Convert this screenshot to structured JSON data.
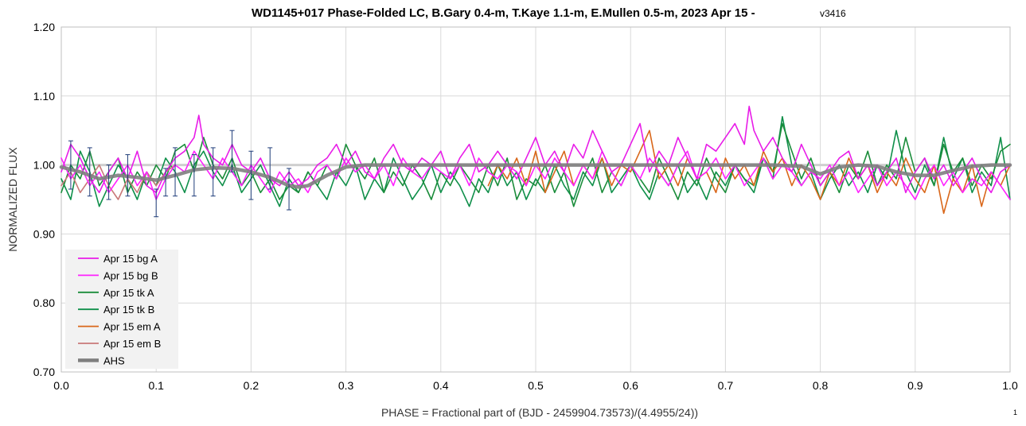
{
  "chart_data": {
    "type": "line",
    "title": "WD1145+017 Phase-Folded LC, B.Gary 0.4-m, T.Kaye 1.1-m, E.Mullen 0.5-m, 2023 Apr 15 - ",
    "title_version": "v3416",
    "xlabel": "PHASE = Fractional part of (BJD - 2459904.73573)/(4.4955/24))",
    "ylabel": "NORMALIZED FLUX",
    "xlim": [
      0.0,
      1.0
    ],
    "ylim": [
      0.7,
      1.2
    ],
    "x_ticks": [
      "0.0",
      "0.1",
      "0.2",
      "0.3",
      "0.4",
      "0.5",
      "0.6",
      "0.7",
      "0.8",
      "0.9",
      "1.0"
    ],
    "y_ticks": [
      "0.70",
      "0.80",
      "0.90",
      "1.00",
      "1.10",
      "1.20"
    ],
    "grid": true,
    "legend_position": "bottom-left",
    "footnote": "1",
    "series": [
      {
        "name": "Apr 15 bg A",
        "color": "#e81ce8",
        "x": [
          0.0,
          0.01,
          0.02,
          0.03,
          0.04,
          0.05,
          0.06,
          0.07,
          0.08,
          0.09,
          0.1,
          0.11,
          0.12,
          0.13,
          0.14,
          0.145,
          0.15,
          0.16,
          0.17,
          0.18,
          0.19,
          0.2,
          0.21,
          0.22,
          0.23,
          0.24,
          0.25,
          0.26,
          0.27,
          0.28,
          0.29,
          0.3,
          0.31,
          0.32,
          0.33,
          0.34,
          0.35,
          0.36,
          0.37,
          0.38,
          0.39,
          0.4,
          0.41,
          0.42,
          0.43,
          0.44,
          0.45,
          0.46,
          0.47,
          0.48,
          0.49,
          0.5,
          0.51,
          0.52,
          0.53,
          0.54,
          0.55,
          0.56,
          0.57,
          0.58,
          0.59,
          0.6,
          0.61,
          0.62,
          0.63,
          0.64,
          0.65,
          0.66,
          0.67,
          0.68,
          0.69,
          0.7,
          0.71,
          0.72,
          0.725,
          0.73,
          0.74,
          0.75,
          0.76,
          0.77,
          0.78,
          0.79,
          0.8,
          0.81,
          0.82,
          0.83,
          0.84,
          0.85,
          0.86,
          0.87,
          0.88,
          0.89,
          0.9,
          0.91,
          0.92,
          0.93,
          0.94,
          0.95,
          0.96,
          0.97,
          0.98,
          0.99,
          1.0
        ],
        "values": [
          0.99,
          1.03,
          1.01,
          0.98,
          0.96,
          0.99,
          1.01,
          0.98,
          1.02,
          0.97,
          0.96,
          0.99,
          1.01,
          1.02,
          1.04,
          1.072,
          1.03,
          1.01,
          1.0,
          1.03,
          1.0,
          0.99,
          1.01,
          0.98,
          0.97,
          0.99,
          0.97,
          0.98,
          1.0,
          1.01,
          1.03,
          1.0,
          1.02,
          0.99,
          0.98,
          1.01,
          1.03,
          1.0,
          0.99,
          1.01,
          1.0,
          1.02,
          0.98,
          1.01,
          1.03,
          0.99,
          1.0,
          1.02,
          1.0,
          0.98,
          1.01,
          1.04,
          1.0,
          1.02,
          0.99,
          1.03,
          1.01,
          1.05,
          1.02,
          0.99,
          1.0,
          1.03,
          1.06,
          0.99,
          1.02,
          1.0,
          1.04,
          1.01,
          0.98,
          1.03,
          1.02,
          1.04,
          1.06,
          1.03,
          1.085,
          1.05,
          1.02,
          1.04,
          1.01,
          0.99,
          1.03,
          1.0,
          0.97,
          0.99,
          1.01,
          1.02,
          0.98,
          1.0,
          0.97,
          0.99,
          1.01,
          0.96,
          0.99,
          1.01,
          0.98,
          1.0,
          0.97,
          0.99,
          1.01,
          0.98,
          0.96,
          0.99,
          1.0
        ]
      },
      {
        "name": "Apr 15 bg B",
        "color": "#ff22ff",
        "x": [
          0.0,
          0.01,
          0.02,
          0.03,
          0.04,
          0.05,
          0.06,
          0.07,
          0.08,
          0.09,
          0.1,
          0.11,
          0.12,
          0.13,
          0.14,
          0.15,
          0.16,
          0.17,
          0.18,
          0.19,
          0.2,
          0.21,
          0.22,
          0.23,
          0.24,
          0.25,
          0.26,
          0.27,
          0.28,
          0.29,
          0.3,
          0.31,
          0.32,
          0.33,
          0.34,
          0.35,
          0.36,
          0.37,
          0.38,
          0.39,
          0.4,
          0.41,
          0.42,
          0.43,
          0.44,
          0.45,
          0.46,
          0.47,
          0.48,
          0.49,
          0.5,
          0.51,
          0.52,
          0.53,
          0.54,
          0.55,
          0.56,
          0.57,
          0.58,
          0.59,
          0.6,
          0.61,
          0.62,
          0.63,
          0.64,
          0.65,
          0.66,
          0.67,
          0.68,
          0.69,
          0.7,
          0.71,
          0.72,
          0.73,
          0.74,
          0.75,
          0.76,
          0.77,
          0.78,
          0.79,
          0.8,
          0.81,
          0.82,
          0.83,
          0.84,
          0.85,
          0.86,
          0.87,
          0.88,
          0.89,
          0.9,
          0.91,
          0.92,
          0.93,
          0.94,
          0.95,
          0.96,
          0.97,
          0.98,
          0.99,
          1.0
        ],
        "values": [
          1.01,
          0.98,
          1.0,
          0.97,
          0.99,
          0.96,
          0.98,
          1.0,
          0.97,
          0.99,
          0.95,
          0.98,
          1.0,
          0.99,
          1.02,
          1.0,
          0.98,
          1.01,
          0.99,
          0.97,
          1.0,
          0.98,
          0.96,
          0.99,
          0.97,
          0.98,
          0.96,
          0.99,
          1.0,
          0.98,
          1.01,
          0.99,
          1.0,
          0.98,
          1.0,
          0.97,
          1.01,
          0.99,
          0.98,
          1.0,
          0.99,
          0.98,
          1.0,
          0.97,
          1.01,
          0.99,
          0.98,
          1.0,
          0.99,
          0.97,
          1.0,
          0.98,
          1.01,
          0.99,
          0.97,
          1.0,
          0.98,
          1.02,
          0.99,
          0.97,
          1.0,
          0.98,
          1.01,
          0.99,
          0.97,
          1.0,
          1.02,
          0.98,
          0.99,
          1.01,
          0.98,
          1.0,
          0.97,
          0.99,
          1.01,
          0.98,
          1.0,
          0.99,
          0.97,
          0.99,
          0.98,
          1.0,
          0.97,
          0.99,
          0.96,
          0.98,
          1.0,
          0.97,
          0.99,
          0.97,
          0.95,
          0.98,
          1.0,
          0.97,
          0.99,
          0.96,
          0.98,
          0.97,
          0.99,
          0.97,
          0.95
        ]
      },
      {
        "name": "Apr 15 tk A",
        "color": "#1a8c3a",
        "x": [
          0.0,
          0.01,
          0.02,
          0.03,
          0.04,
          0.05,
          0.06,
          0.07,
          0.08,
          0.09,
          0.1,
          0.11,
          0.12,
          0.13,
          0.14,
          0.15,
          0.16,
          0.17,
          0.18,
          0.19,
          0.2,
          0.21,
          0.22,
          0.23,
          0.24,
          0.25,
          0.26,
          0.27,
          0.28,
          0.29,
          0.3,
          0.31,
          0.32,
          0.33,
          0.34,
          0.35,
          0.36,
          0.37,
          0.38,
          0.39,
          0.4,
          0.41,
          0.42,
          0.43,
          0.44,
          0.45,
          0.46,
          0.47,
          0.48,
          0.49,
          0.5,
          0.51,
          0.52,
          0.53,
          0.54,
          0.55,
          0.56,
          0.57,
          0.58,
          0.59,
          0.6,
          0.61,
          0.62,
          0.63,
          0.64,
          0.65,
          0.66,
          0.67,
          0.68,
          0.69,
          0.7,
          0.71,
          0.72,
          0.73,
          0.74,
          0.75,
          0.76,
          0.77,
          0.78,
          0.79,
          0.8,
          0.81,
          0.82,
          0.83,
          0.84,
          0.85,
          0.86,
          0.87,
          0.88,
          0.89,
          0.9,
          0.91,
          0.92,
          0.93,
          0.94,
          0.95,
          0.96,
          0.97,
          0.98,
          0.99,
          1.0
        ],
        "values": [
          0.96,
          1.0,
          0.98,
          1.02,
          0.97,
          0.99,
          1.01,
          0.96,
          0.99,
          0.97,
          1.0,
          0.98,
          1.02,
          1.03,
          0.99,
          1.04,
          1.0,
          0.98,
          1.01,
          0.97,
          0.99,
          0.96,
          0.98,
          0.95,
          0.97,
          0.96,
          0.99,
          0.97,
          1.0,
          0.98,
          1.03,
          1.0,
          0.98,
          1.01,
          0.96,
          0.99,
          0.97,
          1.0,
          0.98,
          0.95,
          0.99,
          0.97,
          1.0,
          0.98,
          0.96,
          1.0,
          0.97,
          1.01,
          0.95,
          0.98,
          0.97,
          1.0,
          0.96,
          0.99,
          0.94,
          0.98,
          1.01,
          0.96,
          0.99,
          0.97,
          1.0,
          0.98,
          0.96,
          1.01,
          0.98,
          0.95,
          0.99,
          0.97,
          1.01,
          0.98,
          0.96,
          1.0,
          0.98,
          0.97,
          1.01,
          0.99,
          1.06,
          1.02,
          0.98,
          1.01,
          0.97,
          0.99,
          0.96,
          1.0,
          0.98,
          1.02,
          0.97,
          1.0,
          0.98,
          1.04,
          0.99,
          1.01,
          0.97,
          1.03,
          0.99,
          1.01,
          0.97,
          1.0,
          0.98,
          1.02,
          1.03
        ]
      },
      {
        "name": "Apr 15 tk B",
        "color": "#0f8f4a",
        "x": [
          0.0,
          0.01,
          0.02,
          0.03,
          0.04,
          0.05,
          0.06,
          0.07,
          0.08,
          0.09,
          0.1,
          0.11,
          0.12,
          0.13,
          0.14,
          0.15,
          0.16,
          0.17,
          0.18,
          0.19,
          0.2,
          0.21,
          0.22,
          0.23,
          0.24,
          0.25,
          0.26,
          0.27,
          0.28,
          0.29,
          0.3,
          0.31,
          0.32,
          0.33,
          0.34,
          0.35,
          0.36,
          0.37,
          0.38,
          0.39,
          0.4,
          0.41,
          0.42,
          0.43,
          0.44,
          0.45,
          0.46,
          0.47,
          0.48,
          0.49,
          0.5,
          0.51,
          0.52,
          0.53,
          0.54,
          0.55,
          0.56,
          0.57,
          0.58,
          0.59,
          0.6,
          0.61,
          0.62,
          0.63,
          0.64,
          0.65,
          0.66,
          0.67,
          0.68,
          0.69,
          0.7,
          0.71,
          0.72,
          0.73,
          0.74,
          0.75,
          0.76,
          0.77,
          0.78,
          0.79,
          0.8,
          0.81,
          0.82,
          0.83,
          0.84,
          0.85,
          0.86,
          0.87,
          0.88,
          0.89,
          0.9,
          0.91,
          0.92,
          0.93,
          0.94,
          0.95,
          0.96,
          0.97,
          0.98,
          0.99,
          1.0
        ],
        "values": [
          0.98,
          0.95,
          1.02,
          0.99,
          0.94,
          0.97,
          1.0,
          0.98,
          0.95,
          0.99,
          0.97,
          1.01,
          0.99,
          0.96,
          1.0,
          1.02,
          0.99,
          0.97,
          1.0,
          0.96,
          0.98,
          1.0,
          0.97,
          0.94,
          0.98,
          0.96,
          0.99,
          0.97,
          0.95,
          0.99,
          0.97,
          1.0,
          0.95,
          0.98,
          0.96,
          1.01,
          0.98,
          0.95,
          0.97,
          1.0,
          0.96,
          0.99,
          0.97,
          0.94,
          0.98,
          0.96,
          1.0,
          0.97,
          0.99,
          0.95,
          0.98,
          0.96,
          1.0,
          0.97,
          0.95,
          0.99,
          0.97,
          1.01,
          0.96,
          0.98,
          1.0,
          0.97,
          0.95,
          0.99,
          0.97,
          1.0,
          0.96,
          0.98,
          0.95,
          0.99,
          0.97,
          1.0,
          0.98,
          0.96,
          1.01,
          0.98,
          1.07,
          1.0,
          0.97,
          0.99,
          0.95,
          0.98,
          1.0,
          0.97,
          0.99,
          0.96,
          1.0,
          0.98,
          1.05,
          0.99,
          0.96,
          1.0,
          0.97,
          1.04,
          0.98,
          1.01,
          0.96,
          0.99,
          0.97,
          1.04,
          0.95
        ]
      },
      {
        "name": "Apr 15 em A",
        "color": "#d9671a",
        "x": [
          0.45,
          0.46,
          0.47,
          0.48,
          0.49,
          0.5,
          0.51,
          0.52,
          0.53,
          0.54,
          0.55,
          0.56,
          0.57,
          0.58,
          0.59,
          0.6,
          0.61,
          0.62,
          0.63,
          0.64,
          0.65,
          0.66,
          0.67,
          0.68,
          0.69,
          0.7,
          0.71,
          0.72,
          0.73,
          0.74,
          0.75,
          0.76,
          0.77,
          0.78,
          0.79,
          0.8,
          0.81,
          0.82,
          0.83,
          0.84,
          0.85,
          0.86,
          0.87,
          0.88,
          0.89,
          0.9,
          0.91,
          0.92,
          0.93,
          0.94,
          0.95,
          0.96,
          0.97,
          0.98,
          0.99,
          1.0
        ],
        "values": [
          0.97,
          1.0,
          0.98,
          1.01,
          0.97,
          1.02,
          0.96,
          0.99,
          1.02,
          0.97,
          1.0,
          0.98,
          1.01,
          0.97,
          1.0,
          0.99,
          1.02,
          1.05,
          0.98,
          1.0,
          0.97,
          1.01,
          0.98,
          0.99,
          0.96,
          1.01,
          0.98,
          1.0,
          0.97,
          1.02,
          0.99,
          1.01,
          0.97,
          1.0,
          0.98,
          0.95,
          0.99,
          0.97,
          1.01,
          0.98,
          1.0,
          0.96,
          0.99,
          0.97,
          1.01,
          0.98,
          0.96,
          1.0,
          0.93,
          0.98,
          0.96,
          1.0,
          0.94,
          0.99,
          0.97,
          1.0
        ]
      },
      {
        "name": "Apr 15 em B",
        "color": "#c87878",
        "x": [
          0.0,
          0.01,
          0.02,
          0.03,
          0.04,
          0.05,
          0.06,
          0.07,
          0.08,
          0.09,
          0.1,
          0.11,
          0.12
        ],
        "values": [
          0.97,
          0.99,
          0.96,
          0.98,
          1.0,
          0.97,
          0.95,
          0.98,
          0.96,
          0.99,
          0.97,
          0.99,
          1.0
        ]
      },
      {
        "name": "AHS",
        "color": "#7f7f7f",
        "x": [
          0.0,
          0.02,
          0.04,
          0.06,
          0.08,
          0.1,
          0.12,
          0.14,
          0.16,
          0.18,
          0.2,
          0.22,
          0.24,
          0.25,
          0.26,
          0.28,
          0.3,
          0.32,
          0.35,
          0.4,
          0.45,
          0.5,
          0.55,
          0.6,
          0.65,
          0.7,
          0.75,
          0.78,
          0.8,
          0.82,
          0.84,
          0.86,
          0.88,
          0.9,
          0.92,
          0.94,
          0.96,
          0.98,
          1.0
        ],
        "values": [
          0.997,
          0.99,
          0.98,
          0.985,
          0.982,
          0.978,
          0.985,
          0.993,
          0.996,
          0.995,
          0.99,
          0.982,
          0.97,
          0.968,
          0.97,
          0.985,
          0.997,
          1.0,
          1.0,
          1.0,
          1.0,
          1.0,
          1.0,
          1.0,
          1.0,
          1.0,
          1.0,
          0.998,
          0.987,
          0.997,
          1.0,
          0.998,
          0.99,
          0.985,
          0.985,
          0.992,
          0.998,
          1.0,
          1.0
        ]
      }
    ],
    "error_bars": {
      "color": "#1f3d7a",
      "x": [
        0.01,
        0.03,
        0.05,
        0.07,
        0.1,
        0.11,
        0.12,
        0.14,
        0.16,
        0.18,
        0.2,
        0.22,
        0.24
      ],
      "values": [
        1.0,
        0.99,
        0.975,
        0.985,
        0.945,
        0.975,
        0.99,
        0.985,
        0.99,
        1.02,
        0.985,
        0.995,
        0.965
      ],
      "err": [
        0.035,
        0.035,
        0.025,
        0.03,
        0.02,
        0.02,
        0.035,
        0.03,
        0.035,
        0.03,
        0.035,
        0.03,
        0.03
      ]
    }
  }
}
